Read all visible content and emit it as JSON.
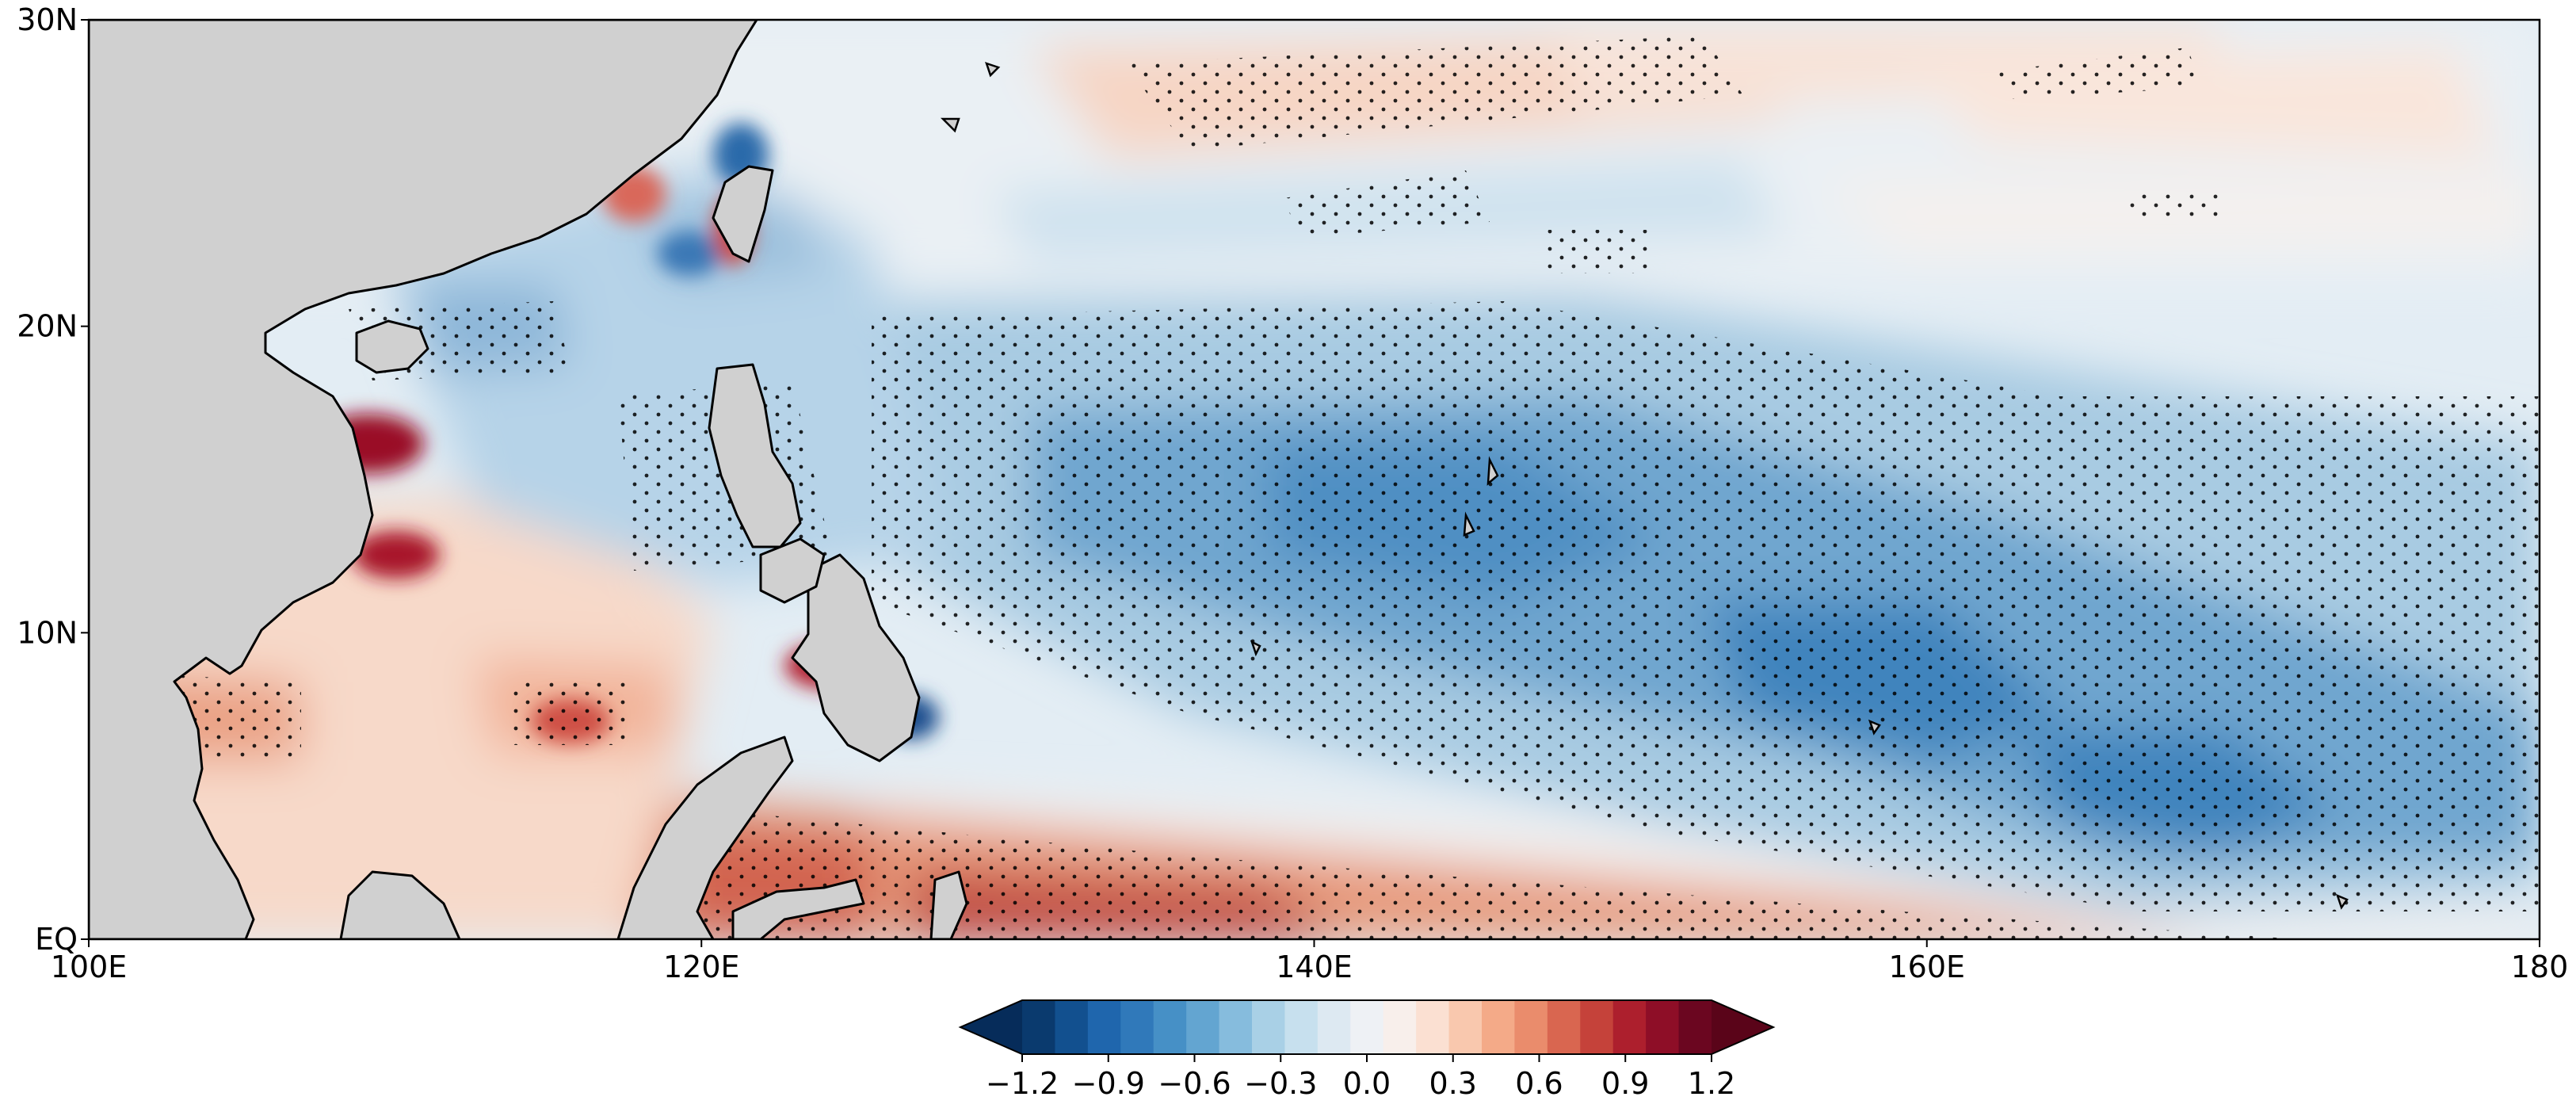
{
  "map": {
    "extent": {
      "lon": [
        100,
        180
      ],
      "lat": [
        0,
        30
      ]
    },
    "x_ticks": [
      {
        "lon": 100,
        "label": "100E"
      },
      {
        "lon": 120,
        "label": "120E"
      },
      {
        "lon": 140,
        "label": "140E"
      },
      {
        "lon": 160,
        "label": "160E"
      },
      {
        "lon": 180,
        "label": "180"
      }
    ],
    "y_ticks": [
      {
        "lat": 0,
        "label": "EQ"
      },
      {
        "lat": 10,
        "label": "10N"
      },
      {
        "lat": 20,
        "label": "20N"
      },
      {
        "lat": 30,
        "label": "30N"
      }
    ],
    "colors": {
      "land": "#d0d0d0",
      "coastline": "#000000",
      "stipple": "#000000"
    },
    "colorbar": {
      "extend": "both",
      "min": -1.2,
      "max": 1.2,
      "colors": [
        "#0a3a6e",
        "#12508f",
        "#1f66ad",
        "#3079ba",
        "#4690c6",
        "#63a5d1",
        "#86bcdd",
        "#a9d0e6",
        "#c7e0ee",
        "#dde9f2",
        "#eef1f5",
        "#f8efeb",
        "#fbe0d2",
        "#f9c8ae",
        "#f4aa88",
        "#ea8c6c",
        "#d96650",
        "#c5423a",
        "#ad1f2d",
        "#8e0e27",
        "#6b0620"
      ],
      "ticks": [
        {
          "value": -1.2,
          "label": "−1.2"
        },
        {
          "value": -0.9,
          "label": "−0.9"
        },
        {
          "value": -0.6,
          "label": "−0.6"
        },
        {
          "value": -0.3,
          "label": "−0.3"
        },
        {
          "value": 0.0,
          "label": "0.0"
        },
        {
          "value": 0.3,
          "label": "0.3"
        },
        {
          "value": 0.6,
          "label": "0.6"
        },
        {
          "value": 0.9,
          "label": "0.9"
        },
        {
          "value": 1.2,
          "label": "1.2"
        }
      ]
    }
  }
}
